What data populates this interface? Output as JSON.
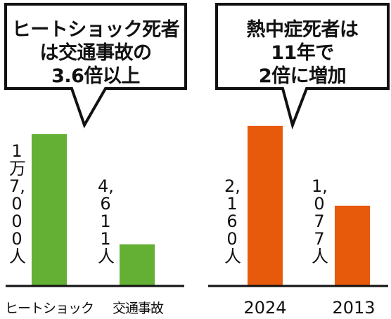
{
  "colors": {
    "left_bars": "#63b034",
    "right_bars": "#e85a0b",
    "outline": "#111111"
  },
  "left_panel": {
    "callout_lines": [
      "ヒートショック死者",
      "は交通事故の",
      "3.6倍以上"
    ]
  },
  "right_panel": {
    "callout_lines": [
      "熱中症死者は",
      "11年で",
      "2倍に増加"
    ]
  },
  "chart_data": [
    {
      "type": "bar",
      "categories": [
        "ヒートショック",
        "交通事故"
      ],
      "values": [
        17000,
        4611
      ],
      "value_labels": [
        "1万7,000人",
        "4,611人"
      ],
      "unit": "人",
      "colors": [
        "#63b034",
        "#63b034"
      ]
    },
    {
      "type": "bar",
      "categories": [
        "2024",
        "2013"
      ],
      "values": [
        2160,
        1077
      ],
      "value_labels": [
        "2,160人",
        "1,077人"
      ],
      "unit": "人",
      "colors": [
        "#e85a0b",
        "#e85a0b"
      ]
    }
  ]
}
